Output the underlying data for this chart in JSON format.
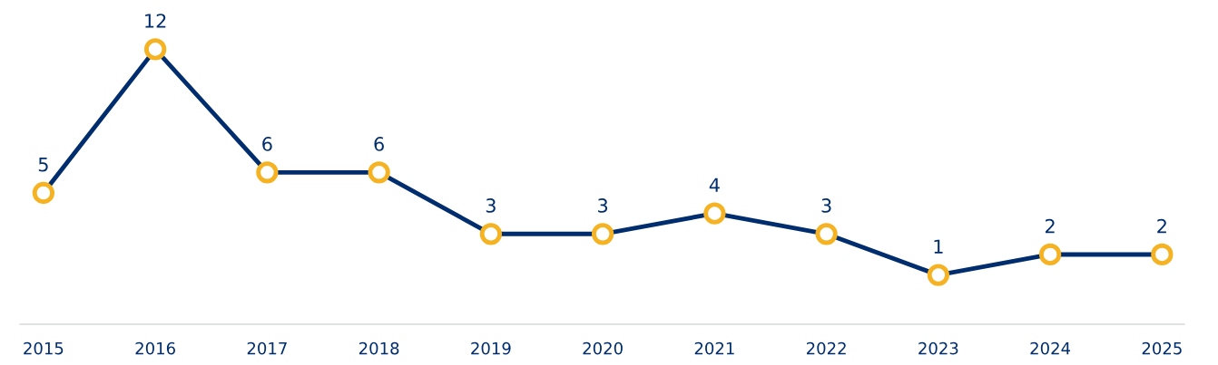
{
  "chart_data": {
    "type": "line",
    "categories": [
      "2015",
      "2016",
      "2017",
      "2018",
      "2019",
      "2020",
      "2021",
      "2022",
      "2023",
      "2024",
      "2025"
    ],
    "series": [
      {
        "color": "#002d6e",
        "values": [
          5,
          12,
          6,
          6,
          3,
          3,
          4,
          3,
          1,
          2,
          2
        ]
      }
    ],
    "tick_labels": "x",
    "data_labels": true,
    "marker": "circle",
    "line_style": "solid",
    "grid": false,
    "legend": false
  }
}
